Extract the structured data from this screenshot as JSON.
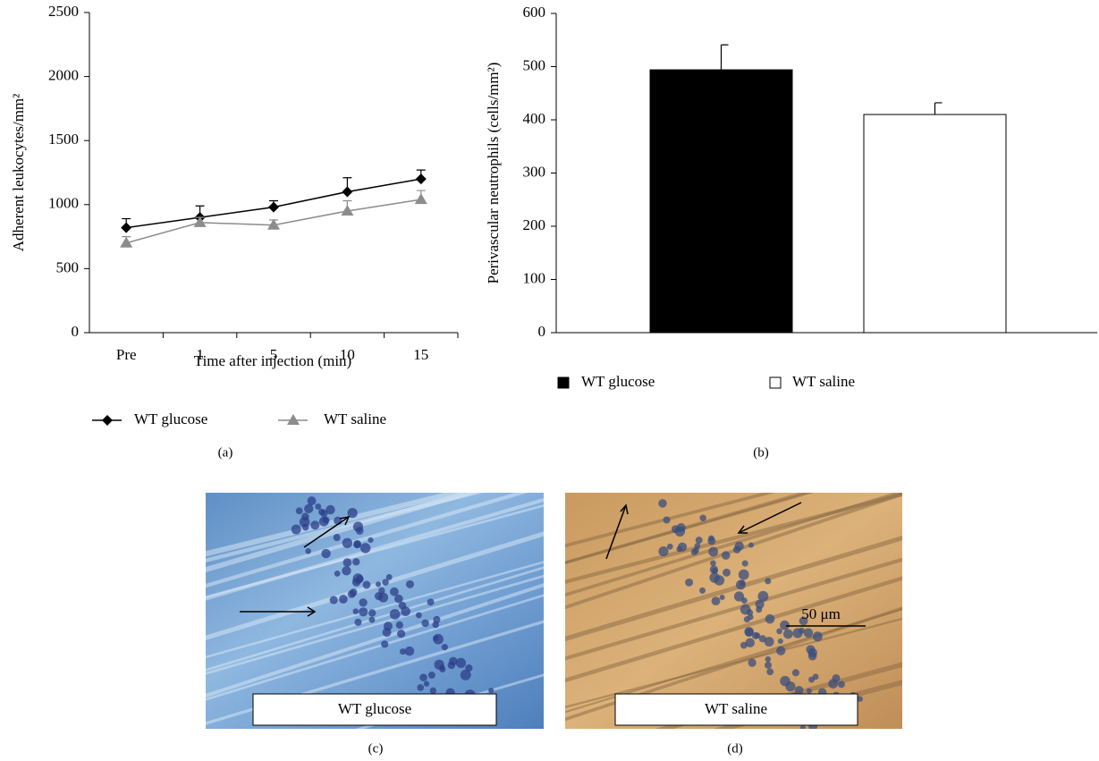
{
  "chart_data": [
    {
      "type": "line",
      "caption": "(a)",
      "x_label": "Time after injection (min)",
      "y_label": "Adherent leukocytes/mm²",
      "categories": [
        "Pre",
        "1",
        "5",
        "10",
        "15"
      ],
      "ylim": [
        0,
        2500
      ],
      "yticks": [
        0,
        500,
        1000,
        1500,
        2000,
        2500
      ],
      "series": [
        {
          "name": "WT glucose",
          "color": "#000000",
          "marker": "diamond",
          "values": [
            820,
            900,
            980,
            1100,
            1200
          ],
          "errors": [
            70,
            90,
            50,
            110,
            70
          ]
        },
        {
          "name": "WT saline",
          "color": "#8c8c8c",
          "marker": "triangle",
          "values": [
            700,
            860,
            840,
            950,
            1040
          ],
          "errors": [
            50,
            40,
            40,
            80,
            70
          ]
        }
      ]
    },
    {
      "type": "bar",
      "caption": "(b)",
      "y_label": "Perivascular neutrophils (cells/mm²)",
      "categories": [
        null
      ],
      "ylim": [
        0,
        600
      ],
      "yticks": [
        0,
        100,
        200,
        300,
        400,
        500,
        600
      ],
      "series": [
        {
          "name": "WT glucose",
          "color": "#000000",
          "values": [
            494
          ],
          "errors": [
            47
          ]
        },
        {
          "name": "WT saline",
          "color": "#ffffff",
          "values": [
            410
          ],
          "errors": [
            22
          ]
        }
      ]
    }
  ],
  "images": [
    {
      "label": "WT glucose",
      "caption": "(c)"
    },
    {
      "label": "WT saline",
      "caption": "(d)",
      "scale_bar": "50 μm"
    }
  ]
}
